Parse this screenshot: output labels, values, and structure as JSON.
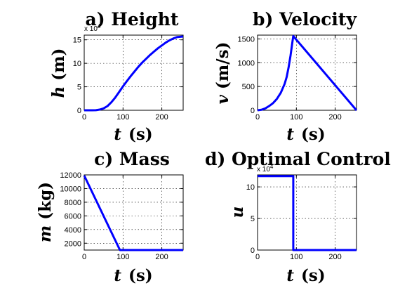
{
  "colors": {
    "line": "#0000ff",
    "axis": "#000000",
    "background": "#ffffff"
  },
  "chart_data": [
    {
      "type": "line",
      "title": "a) Height",
      "xlabel_var": "t",
      "xlabel_unit": "(s)",
      "ylabel_var": "h",
      "ylabel_unit": "(m)",
      "xlim": [
        0,
        255
      ],
      "ylim": [
        0,
        160000
      ],
      "xticks": [
        0,
        100,
        200
      ],
      "xtick_labels": [
        "0",
        "100",
        "200"
      ],
      "yticks": [
        0,
        50000,
        100000,
        150000
      ],
      "ytick_labels": [
        "0",
        "5",
        "10",
        "15"
      ],
      "y_exponent_label": "x 10",
      "y_exponent_power": "4",
      "grid": true,
      "x": [
        0,
        20,
        30,
        40,
        50,
        60,
        70,
        80,
        90,
        100,
        110,
        120,
        130,
        140,
        150,
        160,
        170,
        180,
        190,
        200,
        210,
        220,
        230,
        240,
        255
      ],
      "y": [
        0,
        0,
        200,
        1500,
        4000,
        9000,
        17000,
        27000,
        39000,
        51000,
        62000,
        73000,
        83000,
        93000,
        102000,
        110000,
        118000,
        125000,
        132000,
        138000,
        144000,
        149000,
        153000,
        156000,
        157000
      ]
    },
    {
      "type": "line",
      "title": "b) Velocity",
      "xlabel_var": "t",
      "xlabel_unit": "(s)",
      "ylabel_var": "v",
      "ylabel_unit": "(m/s)",
      "xlim": [
        0,
        255
      ],
      "ylim": [
        0,
        1580
      ],
      "xticks": [
        0,
        100,
        200
      ],
      "xtick_labels": [
        "0",
        "100",
        "200"
      ],
      "yticks": [
        0,
        500,
        1000,
        1500
      ],
      "ytick_labels": [
        "0",
        "500",
        "1000",
        "1500"
      ],
      "grid": true,
      "x": [
        0,
        10,
        20,
        30,
        40,
        50,
        60,
        70,
        75,
        80,
        85,
        90,
        92,
        255
      ],
      "y": [
        0,
        10,
        40,
        90,
        150,
        240,
        370,
        560,
        700,
        900,
        1150,
        1450,
        1560,
        0
      ]
    },
    {
      "type": "line",
      "title": "c) Mass",
      "xlabel_var": "t",
      "xlabel_unit": "(s)",
      "ylabel_var": "m",
      "ylabel_unit": "(kg)",
      "xlim": [
        0,
        255
      ],
      "ylim": [
        1000,
        12000
      ],
      "xticks": [
        0,
        100,
        200
      ],
      "xtick_labels": [
        "0",
        "100",
        "200"
      ],
      "yticks": [
        2000,
        4000,
        6000,
        8000,
        10000,
        12000
      ],
      "ytick_labels": [
        "2000",
        "4000",
        "6000",
        "8000",
        "10000",
        "12000"
      ],
      "grid": true,
      "x": [
        0,
        92,
        255
      ],
      "y": [
        11900,
        1000,
        1000
      ]
    },
    {
      "type": "line",
      "title": "d) Optimal Control",
      "xlabel_var": "t",
      "xlabel_unit": "(s)",
      "ylabel_var": "u",
      "ylabel_unit": "",
      "xlim": [
        0,
        255
      ],
      "ylim": [
        0,
        119000
      ],
      "xticks": [
        0,
        100,
        200
      ],
      "xtick_labels": [
        "0",
        "100",
        "200"
      ],
      "yticks": [
        0,
        50000,
        100000
      ],
      "ytick_labels": [
        "0",
        "5",
        "10"
      ],
      "y_exponent_label": "x 10",
      "y_exponent_power": "4",
      "grid": true,
      "x": [
        0,
        92,
        92,
        255
      ],
      "y": [
        117000,
        117000,
        0,
        0
      ]
    }
  ]
}
